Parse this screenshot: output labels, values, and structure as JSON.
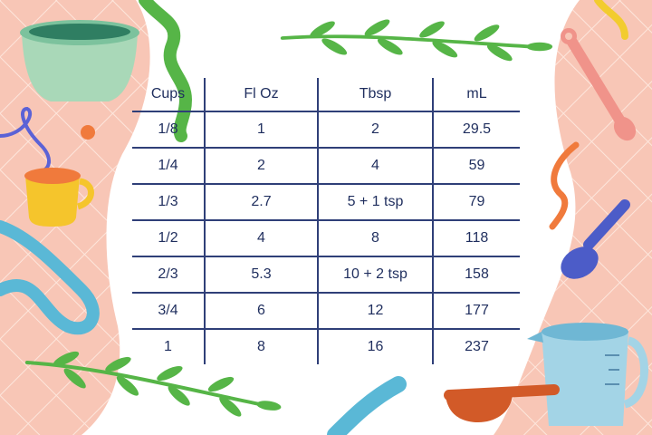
{
  "table": {
    "headers": [
      "Cups",
      "Fl Oz",
      "Tbsp",
      "mL"
    ],
    "rows": [
      [
        "1/8",
        "1",
        "2",
        "29.5"
      ],
      [
        "1/4",
        "2",
        "4",
        "59"
      ],
      [
        "1/3",
        "2.7",
        "5 + 1 tsp",
        "79"
      ],
      [
        "1/2",
        "4",
        "8",
        "118"
      ],
      [
        "2/3",
        "5.3",
        "10 + 2 tsp",
        "158"
      ],
      [
        "3/4",
        "6",
        "12",
        "177"
      ],
      [
        "1",
        "8",
        "16",
        "237"
      ]
    ]
  },
  "colors": {
    "text": "#1f2e5e",
    "grid_lines": "#2f3f78",
    "background_blob": "#f8c6b6",
    "leaf_green": "#56b547"
  },
  "illustrations": [
    "green-bowl-icon",
    "yellow-measuring-cup-icon",
    "pink-measuring-spoon-icon",
    "purple-measuring-spoon-icon",
    "glass-measuring-jug-icon",
    "orange-measuring-spoon-icon",
    "leaf-sprig-icon"
  ]
}
